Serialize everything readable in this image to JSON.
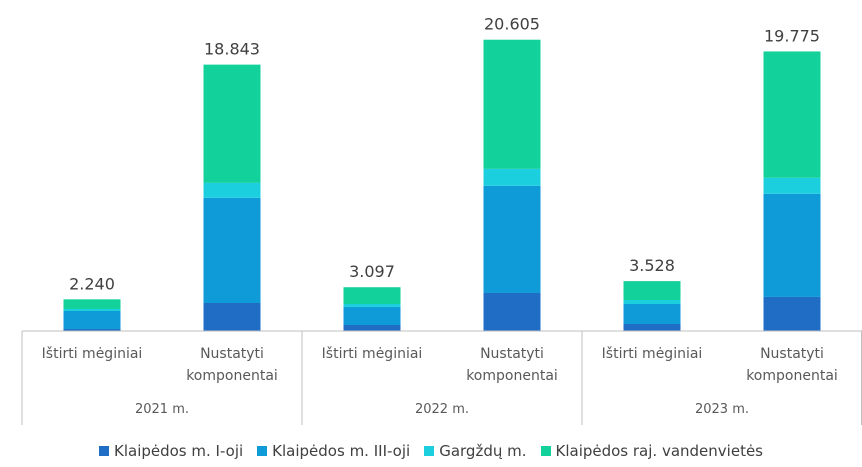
{
  "chart_data": {
    "type": "stacked-bar",
    "groups": [
      "2021 m.",
      "2022 m.",
      "2023 m."
    ],
    "categories": [
      "Ištirti mėginiai",
      "Nustatyti komponentai",
      "Ištirti mėginiai",
      "Nustatyti komponentai",
      "Ištirti mėginiai",
      "Nustatyti komponentai"
    ],
    "series": [
      {
        "name": "Klaipėdos m. I-oji",
        "color": "#1f6dc5",
        "values": [
          140,
          1980,
          425,
          2690,
          495,
          2410
        ]
      },
      {
        "name": "Klaipėdos m. III-oji",
        "color": "#0f9ad8",
        "values": [
          1275,
          7440,
          1275,
          7580,
          1415,
          7295
        ]
      },
      {
        "name": "Gargždų m.",
        "color": "#1ccfde",
        "values": [
          140,
          1060,
          210,
          1200,
          285,
          1135
        ]
      },
      {
        "name": "Klaipėdos raj. vandenvietės",
        "color": "#12d19a",
        "values": [
          685,
          8363,
          1187,
          9135,
          1333,
          8935
        ]
      }
    ],
    "totals": [
      2240,
      18843,
      3097,
      20605,
      3528,
      19775
    ],
    "value_labels": [
      "2.240",
      "18.843",
      "3.097",
      "20.605",
      "3.528",
      "19.775"
    ],
    "ylim": [
      0,
      22000
    ]
  }
}
